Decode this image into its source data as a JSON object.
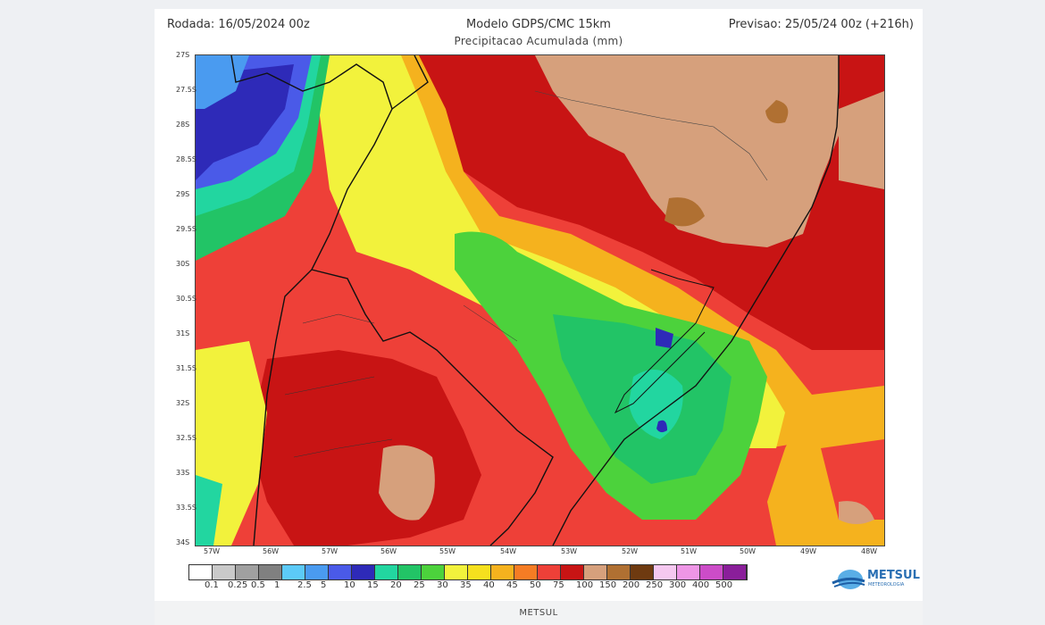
{
  "header": {
    "left": "Rodada: 16/05/2024 00z",
    "center": "Modelo GDPS/CMC 15km",
    "right": "Previsao: 25/05/24 00z (+216h)",
    "subtitle": "Precipitacao Acumulada (mm)"
  },
  "map": {
    "lat_labels": [
      "27S",
      "27.5S",
      "28S",
      "28.5S",
      "29S",
      "29.5S",
      "30S",
      "30.5S",
      "31S",
      "31.5S",
      "32S",
      "32.5S",
      "33S",
      "33.5S",
      "34S"
    ],
    "lon_labels": [
      "57W",
      "56W",
      "57W",
      "56W",
      "55W",
      "54W",
      "53W",
      "52W",
      "51W",
      "50W",
      "49W",
      "48W"
    ],
    "colorscale": [
      {
        "label": "0.1",
        "color": "#ffffff"
      },
      {
        "label": "0.25",
        "color": "#c9c9c9"
      },
      {
        "label": "0.5",
        "color": "#a0a0a0"
      },
      {
        "label": "1",
        "color": "#808080"
      },
      {
        "label": "2.5",
        "color": "#5ccaf7"
      },
      {
        "label": "5",
        "color": "#4a9bf0"
      },
      {
        "label": "10",
        "color": "#4a5ae8"
      },
      {
        "label": "15",
        "color": "#2e2ab8"
      },
      {
        "label": "20",
        "color": "#22d6a0"
      },
      {
        "label": "25",
        "color": "#22c466"
      },
      {
        "label": "30",
        "color": "#4cd23c"
      },
      {
        "label": "35",
        "color": "#f2f23c"
      },
      {
        "label": "40",
        "color": "#f5e01e"
      },
      {
        "label": "45",
        "color": "#f5b21e"
      },
      {
        "label": "50",
        "color": "#f57c24"
      },
      {
        "label": "75",
        "color": "#ee4038"
      },
      {
        "label": "100",
        "color": "#c81414"
      },
      {
        "label": "150",
        "color": "#d6a07c"
      },
      {
        "label": "200",
        "color": "#b07032"
      },
      {
        "label": "250",
        "color": "#6e3a10"
      },
      {
        "label": "300",
        "color": "#f5c8f0"
      },
      {
        "label": "400",
        "color": "#ee96e6"
      },
      {
        "label": "500",
        "color": "#cc4cc8"
      },
      {
        "label": "",
        "color": "#8a1e9a"
      }
    ]
  },
  "logo": {
    "name": "METSUL",
    "tagline": "METEOROLOGIA"
  },
  "footer": {
    "caption": "METSUL"
  }
}
